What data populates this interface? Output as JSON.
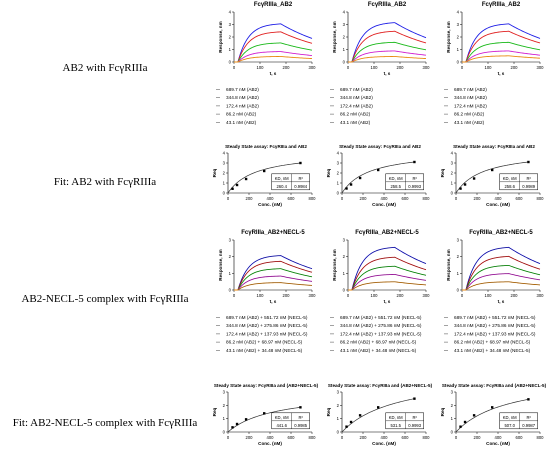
{
  "row_labels": [
    "AB2 with FcγRIIIa",
    "Fit: AB2 with FcγRIIIa",
    "AB2-NECL-5 complex with FcγRIIIa",
    "Fit: AB2-NECL-5 complex with FcγRIIIa"
  ],
  "colors": {
    "c1": "#1f1fe6",
    "c2": "#e02020",
    "c3": "#18b818",
    "c4": "#d020d0",
    "c5": "#e88a10",
    "fit": "#333333"
  },
  "chart_data": [
    {
      "type": "line",
      "title": "FcγRIIIa_AB2",
      "xlabel": "t, s",
      "ylabel": "Response, nm",
      "xticks": [
        "0",
        "100",
        "200",
        "300"
      ],
      "yticks": [
        "0",
        "1",
        "2",
        "3",
        "4"
      ],
      "xlim": [
        0,
        300
      ],
      "ylim": [
        0,
        4
      ],
      "peaks": [
        3.1,
        2.45,
        1.55,
        0.85,
        0.45
      ],
      "legend": [
        "689.7 nM (AB2)",
        "344.8 nM (AB2)",
        "172.4 nM (AB2)",
        "86.2 nM (AB2)",
        "43.1 nM (AB2)"
      ]
    },
    {
      "type": "line",
      "title": "FcγRIIIa_AB2",
      "xlabel": "t, s",
      "ylabel": "Response, nm",
      "xticks": [
        "0",
        "100",
        "200",
        "300"
      ],
      "yticks": [
        "0",
        "1",
        "2",
        "3",
        "4"
      ],
      "xlim": [
        0,
        300
      ],
      "ylim": [
        0,
        4
      ],
      "peaks": [
        3.2,
        2.5,
        1.6,
        0.9,
        0.45
      ],
      "legend": [
        "689.7 nM (AB2)",
        "344.8 nM (AB2)",
        "172.4 nM (AB2)",
        "86.2 nM (AB2)",
        "43.1 nM (AB2)"
      ]
    },
    {
      "type": "line",
      "title": "FcγRIIIa_AB2",
      "xlabel": "t, s",
      "ylabel": "Response, nm",
      "xticks": [
        "0",
        "100",
        "200",
        "300"
      ],
      "yticks": [
        "0",
        "1",
        "2",
        "3",
        "4"
      ],
      "xlim": [
        0,
        300
      ],
      "ylim": [
        0,
        4
      ],
      "peaks": [
        3.1,
        2.5,
        1.6,
        0.9,
        0.5
      ],
      "legend": [
        "689.7 nM (AB2)",
        "344.8 nM (AB2)",
        "172.4 nM (AB2)",
        "86.2 nM (AB2)",
        "43.1 nM (AB2)"
      ]
    },
    {
      "type": "scatter",
      "title": "Steady State assay: FcγRIIIa and AB2",
      "xlabel": "Conc. (nM)",
      "ylabel": "Req",
      "xticks": [
        "0",
        "200",
        "400",
        "600",
        "800"
      ],
      "yticks": [
        "0",
        "1",
        "2",
        "3",
        "4"
      ],
      "xlim": [
        0,
        800
      ],
      "ylim": [
        0,
        4
      ],
      "x": [
        43.1,
        86.2,
        172.4,
        344.8,
        689.7
      ],
      "y": [
        0.42,
        0.8,
        1.4,
        2.2,
        3.0
      ],
      "kd_header": [
        "KD, nM",
        "R²"
      ],
      "kd_values": [
        "260.4",
        "0.9984"
      ]
    },
    {
      "type": "scatter",
      "title": "Steady State assay: FcγRIIIa and AB2",
      "xlabel": "Conc. (nM)",
      "ylabel": "Req",
      "xticks": [
        "0",
        "200",
        "400",
        "600",
        "800"
      ],
      "yticks": [
        "0",
        "1",
        "2",
        "3",
        "4"
      ],
      "xlim": [
        0,
        800
      ],
      "ylim": [
        0,
        4
      ],
      "x": [
        43.1,
        86.2,
        172.4,
        344.8,
        689.7
      ],
      "y": [
        0.45,
        0.85,
        1.5,
        2.3,
        3.1
      ],
      "kd_header": [
        "KD, nM",
        "R²"
      ],
      "kd_values": [
        "258.5",
        "0.9993"
      ]
    },
    {
      "type": "scatter",
      "title": "Steady State assay: FcγRIIIa and AB2",
      "xlabel": "Conc. (nM)",
      "ylabel": "Req",
      "xticks": [
        "0",
        "200",
        "400",
        "600",
        "800"
      ],
      "yticks": [
        "0",
        "1",
        "2",
        "3",
        "4"
      ],
      "xlim": [
        0,
        800
      ],
      "ylim": [
        0,
        4
      ],
      "x": [
        43.1,
        86.2,
        172.4,
        344.8,
        689.7
      ],
      "y": [
        0.44,
        0.85,
        1.45,
        2.3,
        3.1
      ],
      "kd_header": [
        "KD, nM",
        "R²"
      ],
      "kd_values": [
        "258.6",
        "0.9989"
      ]
    },
    {
      "type": "line",
      "title": "FcγRIIIa_AB2+NECL-5",
      "xlabel": "t, s",
      "ylabel": "Response, nm",
      "xticks": [
        "0",
        "100",
        "200",
        "300"
      ],
      "yticks": [
        "0",
        "1",
        "2",
        "3"
      ],
      "xlim": [
        0,
        300
      ],
      "ylim": [
        0,
        3
      ],
      "peaks": [
        2.1,
        1.75,
        1.3,
        0.85,
        0.45
      ],
      "legend": [
        "689.7 nM (AB2) + 551.72 nM (NECL-5)",
        "344.8 nM (AB2) + 275.86 nM (NECL-5)",
        "172.4 nM (AB2) + 137.93 nM (NECL-5)",
        "86.2 nM (AB2) + 68.97 nM (NECL-5)",
        "43.1 nM (AB2) + 34.48 nM (NECL-5)"
      ]
    },
    {
      "type": "line",
      "title": "FcγRIIIa_AB2+NECL-5",
      "xlabel": "t, s",
      "ylabel": "Response, nm",
      "xticks": [
        "0",
        "100",
        "200",
        "300"
      ],
      "yticks": [
        "0",
        "1",
        "2",
        "3"
      ],
      "xlim": [
        0,
        300
      ],
      "ylim": [
        0,
        3
      ],
      "peaks": [
        2.6,
        2.0,
        1.45,
        0.95,
        0.5
      ],
      "legend": [
        "689.7 nM (AB2) + 551.72 nM (NECL-5)",
        "344.8 nM (AB2) + 275.86 nM (NECL-5)",
        "172.4 nM (AB2) + 137.93 nM (NECL-5)",
        "86.2 nM (AB2) + 68.97 nM (NECL-5)",
        "43.1 nM (AB2) + 34.48 nM (NECL-5)"
      ]
    },
    {
      "type": "line",
      "title": "FcγRIIIa_AB2+NECL-5",
      "xlabel": "t, s",
      "ylabel": "Response, nm",
      "xticks": [
        "0",
        "100",
        "200",
        "300"
      ],
      "yticks": [
        "0",
        "1",
        "2",
        "3"
      ],
      "xlim": [
        0,
        300
      ],
      "ylim": [
        0,
        3
      ],
      "peaks": [
        2.6,
        2.05,
        1.5,
        1.0,
        0.5
      ],
      "legend": [
        "689.7 nM (AB2) + 551.72 nM (NECL-5)",
        "344.8 nM (AB2) + 275.86 nM (NECL-5)",
        "172.4 nM (AB2) + 137.93 nM (NECL-5)",
        "86.2 nM (AB2) + 68.97 nM (NECL-5)",
        "43.1 nM (AB2) + 34.48 nM (NECL-5)"
      ]
    },
    {
      "type": "scatter",
      "title": "Steady State assay: FcγRIIIa and (AB2+NECL-5)",
      "xlabel": "Conc. (nM)",
      "ylabel": "Req",
      "xticks": [
        "0",
        "200",
        "400",
        "600",
        "800"
      ],
      "yticks": [
        "0",
        "1",
        "2",
        "3"
      ],
      "xlim": [
        0,
        800
      ],
      "ylim": [
        0,
        3
      ],
      "x": [
        43.1,
        86.2,
        172.4,
        344.8,
        689.7
      ],
      "y": [
        0.35,
        0.6,
        0.95,
        1.4,
        1.85
      ],
      "kd_header": [
        "KD, nM",
        "R²"
      ],
      "kd_values": [
        "441.6",
        "0.9985"
      ]
    },
    {
      "type": "scatter",
      "title": "Steady State assay: FcγRIIIa and (AB2+NECL-5)",
      "xlabel": "Conc. (nM)",
      "ylabel": "Req",
      "xticks": [
        "0",
        "200",
        "400",
        "600",
        "800"
      ],
      "yticks": [
        "0",
        "1",
        "2",
        "3"
      ],
      "xlim": [
        0,
        800
      ],
      "ylim": [
        0,
        3
      ],
      "x": [
        43.1,
        86.2,
        172.4,
        344.8,
        689.7
      ],
      "y": [
        0.4,
        0.75,
        1.25,
        1.85,
        2.5
      ],
      "kd_header": [
        "KD, nM",
        "R²"
      ],
      "kd_values": [
        "531.5",
        "0.9993"
      ]
    },
    {
      "type": "scatter",
      "title": "Steady State assay: FcγRIIIa and (AB2+NECL-5)",
      "xlabel": "Conc. (nM)",
      "ylabel": "Req",
      "xticks": [
        "0",
        "200",
        "400",
        "600",
        "800"
      ],
      "yticks": [
        "0",
        "1",
        "2",
        "3"
      ],
      "xlim": [
        0,
        800
      ],
      "ylim": [
        0,
        3
      ],
      "x": [
        43.1,
        86.2,
        172.4,
        344.8,
        689.7
      ],
      "y": [
        0.4,
        0.75,
        1.25,
        1.85,
        2.45
      ],
      "kd_header": [
        "KD, nM",
        "R²"
      ],
      "kd_values": [
        "507.0",
        "0.9987"
      ]
    }
  ]
}
